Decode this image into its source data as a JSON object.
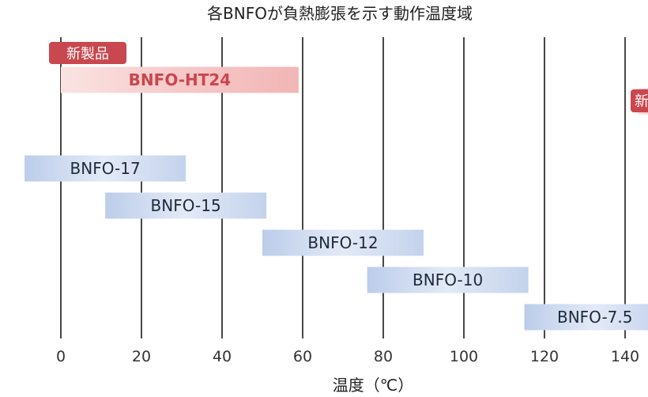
{
  "chart_data": {
    "type": "range-bar",
    "title": "各BNFOが負熱膨張を示す動作温度域",
    "xlabel": "温度（℃）",
    "xlim": [
      0,
      140
    ],
    "xticks": [
      0,
      20,
      40,
      60,
      80,
      100,
      120,
      140
    ],
    "grid": true,
    "new_badge_label": "新製品",
    "new_badge_label_partial": "新",
    "series": [
      {
        "name": "BNFO-HT24",
        "start": 0,
        "end": 59,
        "new": true
      },
      {
        "name": "",
        "start": 143,
        "end": 150,
        "new": true
      },
      {
        "name": "BNFO-17",
        "start": -9,
        "end": 31,
        "new": false
      },
      {
        "name": "BNFO-15",
        "start": 11,
        "end": 51,
        "new": false
      },
      {
        "name": "BNFO-12",
        "start": 50,
        "end": 90,
        "new": false
      },
      {
        "name": "BNFO-10",
        "start": 76,
        "end": 116,
        "new": false
      },
      {
        "name": "BNFO-7.5",
        "start": 115,
        "end": 150,
        "new": false
      }
    ],
    "colors": {
      "new_bar": "#f3bcbc",
      "new_text": "#c9474e",
      "badge": "#c9474e",
      "bar": "#c9d7ef",
      "text": "#1e2a3a"
    }
  }
}
